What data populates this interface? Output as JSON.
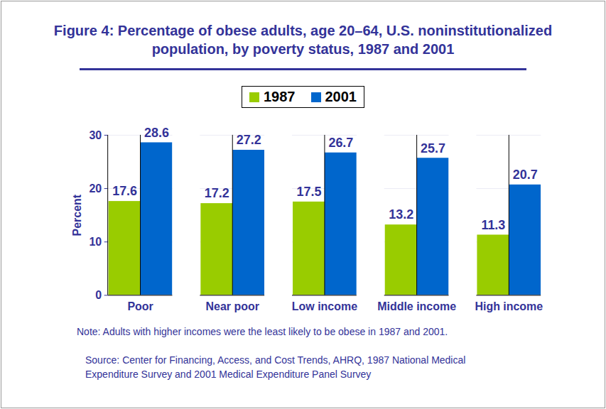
{
  "chart_data": {
    "type": "bar",
    "title": "Figure 4: Percentage of obese adults, age 20–64, U.S. noninstitutionalized population, by poverty status, 1987 and 2001",
    "categories": [
      "Poor",
      "Near poor",
      "Low income",
      "Middle income",
      "High income"
    ],
    "series": [
      {
        "name": "1987",
        "color": "#99cc00",
        "values": [
          17.6,
          17.2,
          17.5,
          13.2,
          11.3
        ]
      },
      {
        "name": "2001",
        "color": "#0066cc",
        "values": [
          28.6,
          27.2,
          26.7,
          25.7,
          20.7
        ]
      }
    ],
    "y_label": "Percent",
    "ylim": [
      0,
      30
    ],
    "yticks": [
      0,
      10,
      20,
      30
    ],
    "grid": true,
    "legend": "top",
    "data_labels": true,
    "note": "Note: Adults with higher incomes were the least likely to be obese in 1987 and 2001.",
    "source": "Source: Center for Financing, Access, and Cost Trends, AHRQ, 1987 National Medical Expenditure Survey and 2001 Medical Expenditure Panel Survey"
  }
}
